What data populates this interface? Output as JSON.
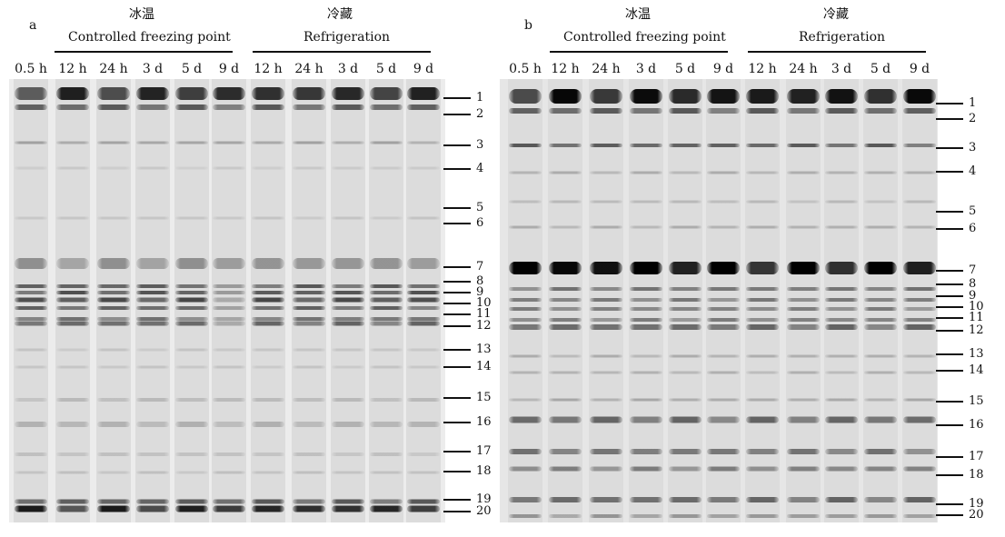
{
  "panels": [
    {
      "letter": "a",
      "group1": {
        "cn": "冰温",
        "en": "Controlled freezing point"
      },
      "group2": {
        "cn": "冷藏",
        "en": "Refrigeration"
      },
      "lanes": [
        "0.5 h",
        "12 h",
        "24 h",
        "3 d",
        "5 d",
        "9 d",
        "12 h",
        "24 h",
        "3 d",
        "5 d",
        "9 d"
      ],
      "markers": [
        "1",
        "2",
        "3",
        "4",
        "5",
        "6",
        "7",
        "8",
        "9",
        "10",
        "11",
        "12",
        "13",
        "14",
        "15",
        "16",
        "17",
        "18",
        "19",
        "20"
      ]
    },
    {
      "letter": "b",
      "group1": {
        "cn": "冰温",
        "en": "Controlled freezing point"
      },
      "group2": {
        "cn": "冷藏",
        "en": "Refrigeration"
      },
      "lanes": [
        "0.5 h",
        "12 h",
        "24 h",
        "3 d",
        "5 d",
        "9 d",
        "12 h",
        "24 h",
        "3 d",
        "5 d",
        "9 d"
      ],
      "markers": [
        "1",
        "2",
        "3",
        "4",
        "5",
        "6",
        "7",
        "8",
        "9",
        "10",
        "11",
        "12",
        "13",
        "14",
        "15",
        "16",
        "17",
        "18",
        "19",
        "20"
      ]
    }
  ]
}
